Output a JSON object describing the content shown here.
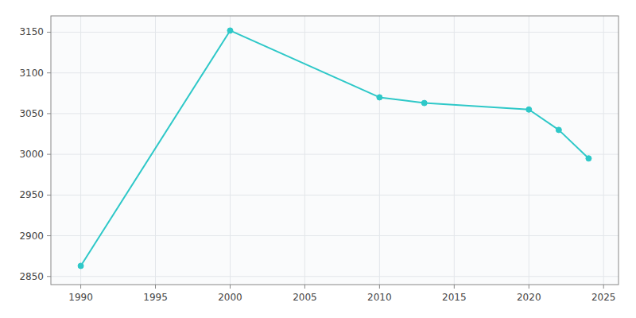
{
  "chart_data": {
    "type": "line",
    "x": [
      1990,
      2000,
      2010,
      2013,
      2020,
      2022,
      2024
    ],
    "values": [
      2863,
      3152,
      3070,
      3063,
      3055,
      3030,
      2995
    ],
    "color": "#2ec8c8",
    "marker": "circle",
    "xlim": [
      1988,
      2026
    ],
    "ylim": [
      2840,
      3170
    ],
    "xticks": [
      1990,
      1995,
      2000,
      2005,
      2010,
      2015,
      2020,
      2025
    ],
    "yticks": [
      2850,
      2900,
      2950,
      3000,
      3050,
      3100,
      3150
    ],
    "grid": true
  }
}
